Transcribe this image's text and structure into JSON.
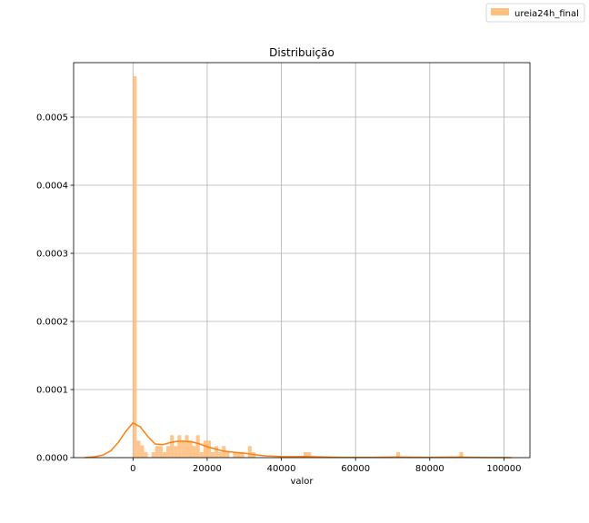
{
  "chart_data": {
    "type": "bar",
    "title": "Distribuição",
    "xlabel": "valor",
    "ylabel": "",
    "xlim": [
      -16000,
      107000
    ],
    "ylim": [
      0,
      0.00058
    ],
    "grid": true,
    "legend_position": "top-right (outside axes)",
    "x_ticks": [
      0,
      20000,
      40000,
      60000,
      80000,
      100000
    ],
    "x_tick_labels": [
      "0",
      "20000",
      "40000",
      "60000",
      "80000",
      "100000"
    ],
    "y_ticks": [
      0,
      0.0001,
      0.0002,
      0.0003,
      0.0004,
      0.0005
    ],
    "y_tick_labels": [
      "0.0000",
      "0.0001",
      "0.0002",
      "0.0003",
      "0.0004",
      "0.0005"
    ],
    "series": [
      {
        "name": "ureia24h_final",
        "kind": "histogram",
        "color": "#ffbf7f",
        "bins": [
          [
            0,
            0.00056
          ],
          [
            1000,
            2.5e-05
          ],
          [
            2000,
            1.8e-05
          ],
          [
            3000,
            8e-06
          ],
          [
            5000,
            8e-06
          ],
          [
            6000,
            1.7e-05
          ],
          [
            7000,
            1.7e-05
          ],
          [
            8000,
            8e-06
          ],
          [
            9000,
            1.7e-05
          ],
          [
            10000,
            3.3e-05
          ],
          [
            11000,
            1.7e-05
          ],
          [
            12000,
            3.3e-05
          ],
          [
            13000,
            2.5e-05
          ],
          [
            14000,
            3.3e-05
          ],
          [
            15000,
            2.5e-05
          ],
          [
            16000,
            1.7e-05
          ],
          [
            17000,
            3.3e-05
          ],
          [
            18000,
            8e-06
          ],
          [
            19000,
            2.5e-05
          ],
          [
            20000,
            2.5e-05
          ],
          [
            21000,
            8e-06
          ],
          [
            22000,
            1.7e-05
          ],
          [
            23000,
            8e-06
          ],
          [
            24000,
            1.7e-05
          ],
          [
            25000,
            8e-06
          ],
          [
            27000,
            8e-06
          ],
          [
            28000,
            8e-06
          ],
          [
            29000,
            8e-06
          ],
          [
            31000,
            1.7e-05
          ],
          [
            32000,
            8e-06
          ],
          [
            46000,
            8e-06
          ],
          [
            47000,
            8e-06
          ],
          [
            71000,
            8e-06
          ],
          [
            88000,
            8e-06
          ]
        ],
        "bin_width": 1000
      },
      {
        "name": "kde",
        "kind": "line",
        "color": "#ff7f0e",
        "points": [
          [
            -13000,
            0.0
          ],
          [
            -10000,
            1.5e-06
          ],
          [
            -8000,
            4e-06
          ],
          [
            -6000,
            1e-05
          ],
          [
            -4000,
            2.2e-05
          ],
          [
            -2000,
            3.8e-05
          ],
          [
            0,
            5.1e-05
          ],
          [
            2000,
            4.5e-05
          ],
          [
            4000,
            3.1e-05
          ],
          [
            6000,
            2e-05
          ],
          [
            8000,
            1.9e-05
          ],
          [
            10000,
            2.2e-05
          ],
          [
            12000,
            2.4e-05
          ],
          [
            14000,
            2.4e-05
          ],
          [
            16000,
            2.3e-05
          ],
          [
            18000,
            2e-05
          ],
          [
            20000,
            1.6e-05
          ],
          [
            22000,
            1.3e-05
          ],
          [
            24000,
            1e-05
          ],
          [
            26000,
            8.5e-06
          ],
          [
            28000,
            7.5e-06
          ],
          [
            30000,
            6.5e-06
          ],
          [
            32000,
            5e-06
          ],
          [
            34000,
            3.5e-06
          ],
          [
            36000,
            2.5e-06
          ],
          [
            40000,
            1.6e-06
          ],
          [
            44000,
            1.5e-06
          ],
          [
            46000,
            1.6e-06
          ],
          [
            50000,
            1.2e-06
          ],
          [
            55000,
            5e-07
          ],
          [
            60000,
            3e-07
          ],
          [
            65000,
            4e-07
          ],
          [
            70000,
            8e-07
          ],
          [
            72000,
            9e-07
          ],
          [
            76000,
            5e-07
          ],
          [
            80000,
            4e-07
          ],
          [
            85000,
            6e-07
          ],
          [
            88000,
            8e-07
          ],
          [
            92000,
            4e-07
          ],
          [
            96000,
            2e-07
          ],
          [
            100000,
            1e-07
          ],
          [
            102000,
            0.0
          ]
        ]
      }
    ]
  }
}
